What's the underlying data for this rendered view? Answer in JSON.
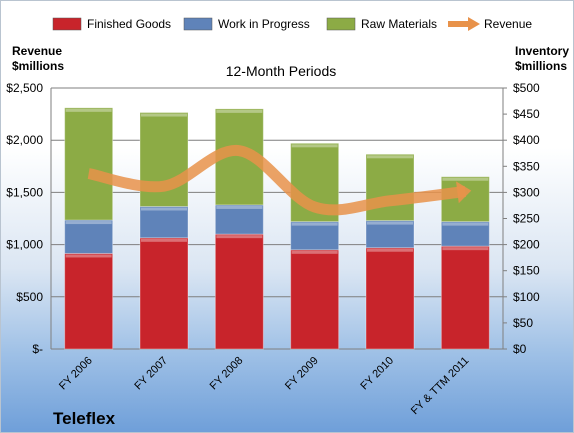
{
  "chart_data": {
    "type": "bar",
    "title": "12-Month Periods",
    "stacked": true,
    "categories": [
      "FY 2006",
      "FY 2007",
      "FY 2008",
      "FY 2009",
      "FY 2010",
      "FY & TTM 2011"
    ],
    "series": [
      {
        "name": "Finished Goods",
        "axis": "right",
        "color": "#c8242b",
        "values": [
          183,
          213,
          220,
          190,
          194,
          197
        ]
      },
      {
        "name": "Work in Progress",
        "axis": "right",
        "color": "#5f83b9",
        "values": [
          64,
          60,
          56,
          54,
          52,
          47
        ]
      },
      {
        "name": "Raw Materials",
        "axis": "right",
        "color": "#8cab45",
        "values": [
          215,
          180,
          184,
          150,
          127,
          86
        ]
      },
      {
        "name": "Revenue",
        "axis": "left",
        "type": "line",
        "color": "#e8924a",
        "values": [
          1680,
          1560,
          1900,
          1360,
          1420,
          1510
        ]
      }
    ],
    "left_axis": {
      "label": [
        "Revenue",
        "$millions"
      ],
      "ylim": [
        0,
        2500
      ],
      "ticks": [
        "$-",
        "$500",
        "$1,000",
        "$1,500",
        "$2,000",
        "$2,500"
      ]
    },
    "right_axis": {
      "label": [
        "Inventory",
        "$millions"
      ],
      "ylim": [
        0,
        500
      ],
      "ticks": [
        "$0",
        "$50",
        "$100",
        "$150",
        "$200",
        "$250",
        "$300",
        "$350",
        "$400",
        "$450",
        "$500"
      ]
    },
    "grid": true,
    "legend_position": "top"
  },
  "company": "Teleflex"
}
